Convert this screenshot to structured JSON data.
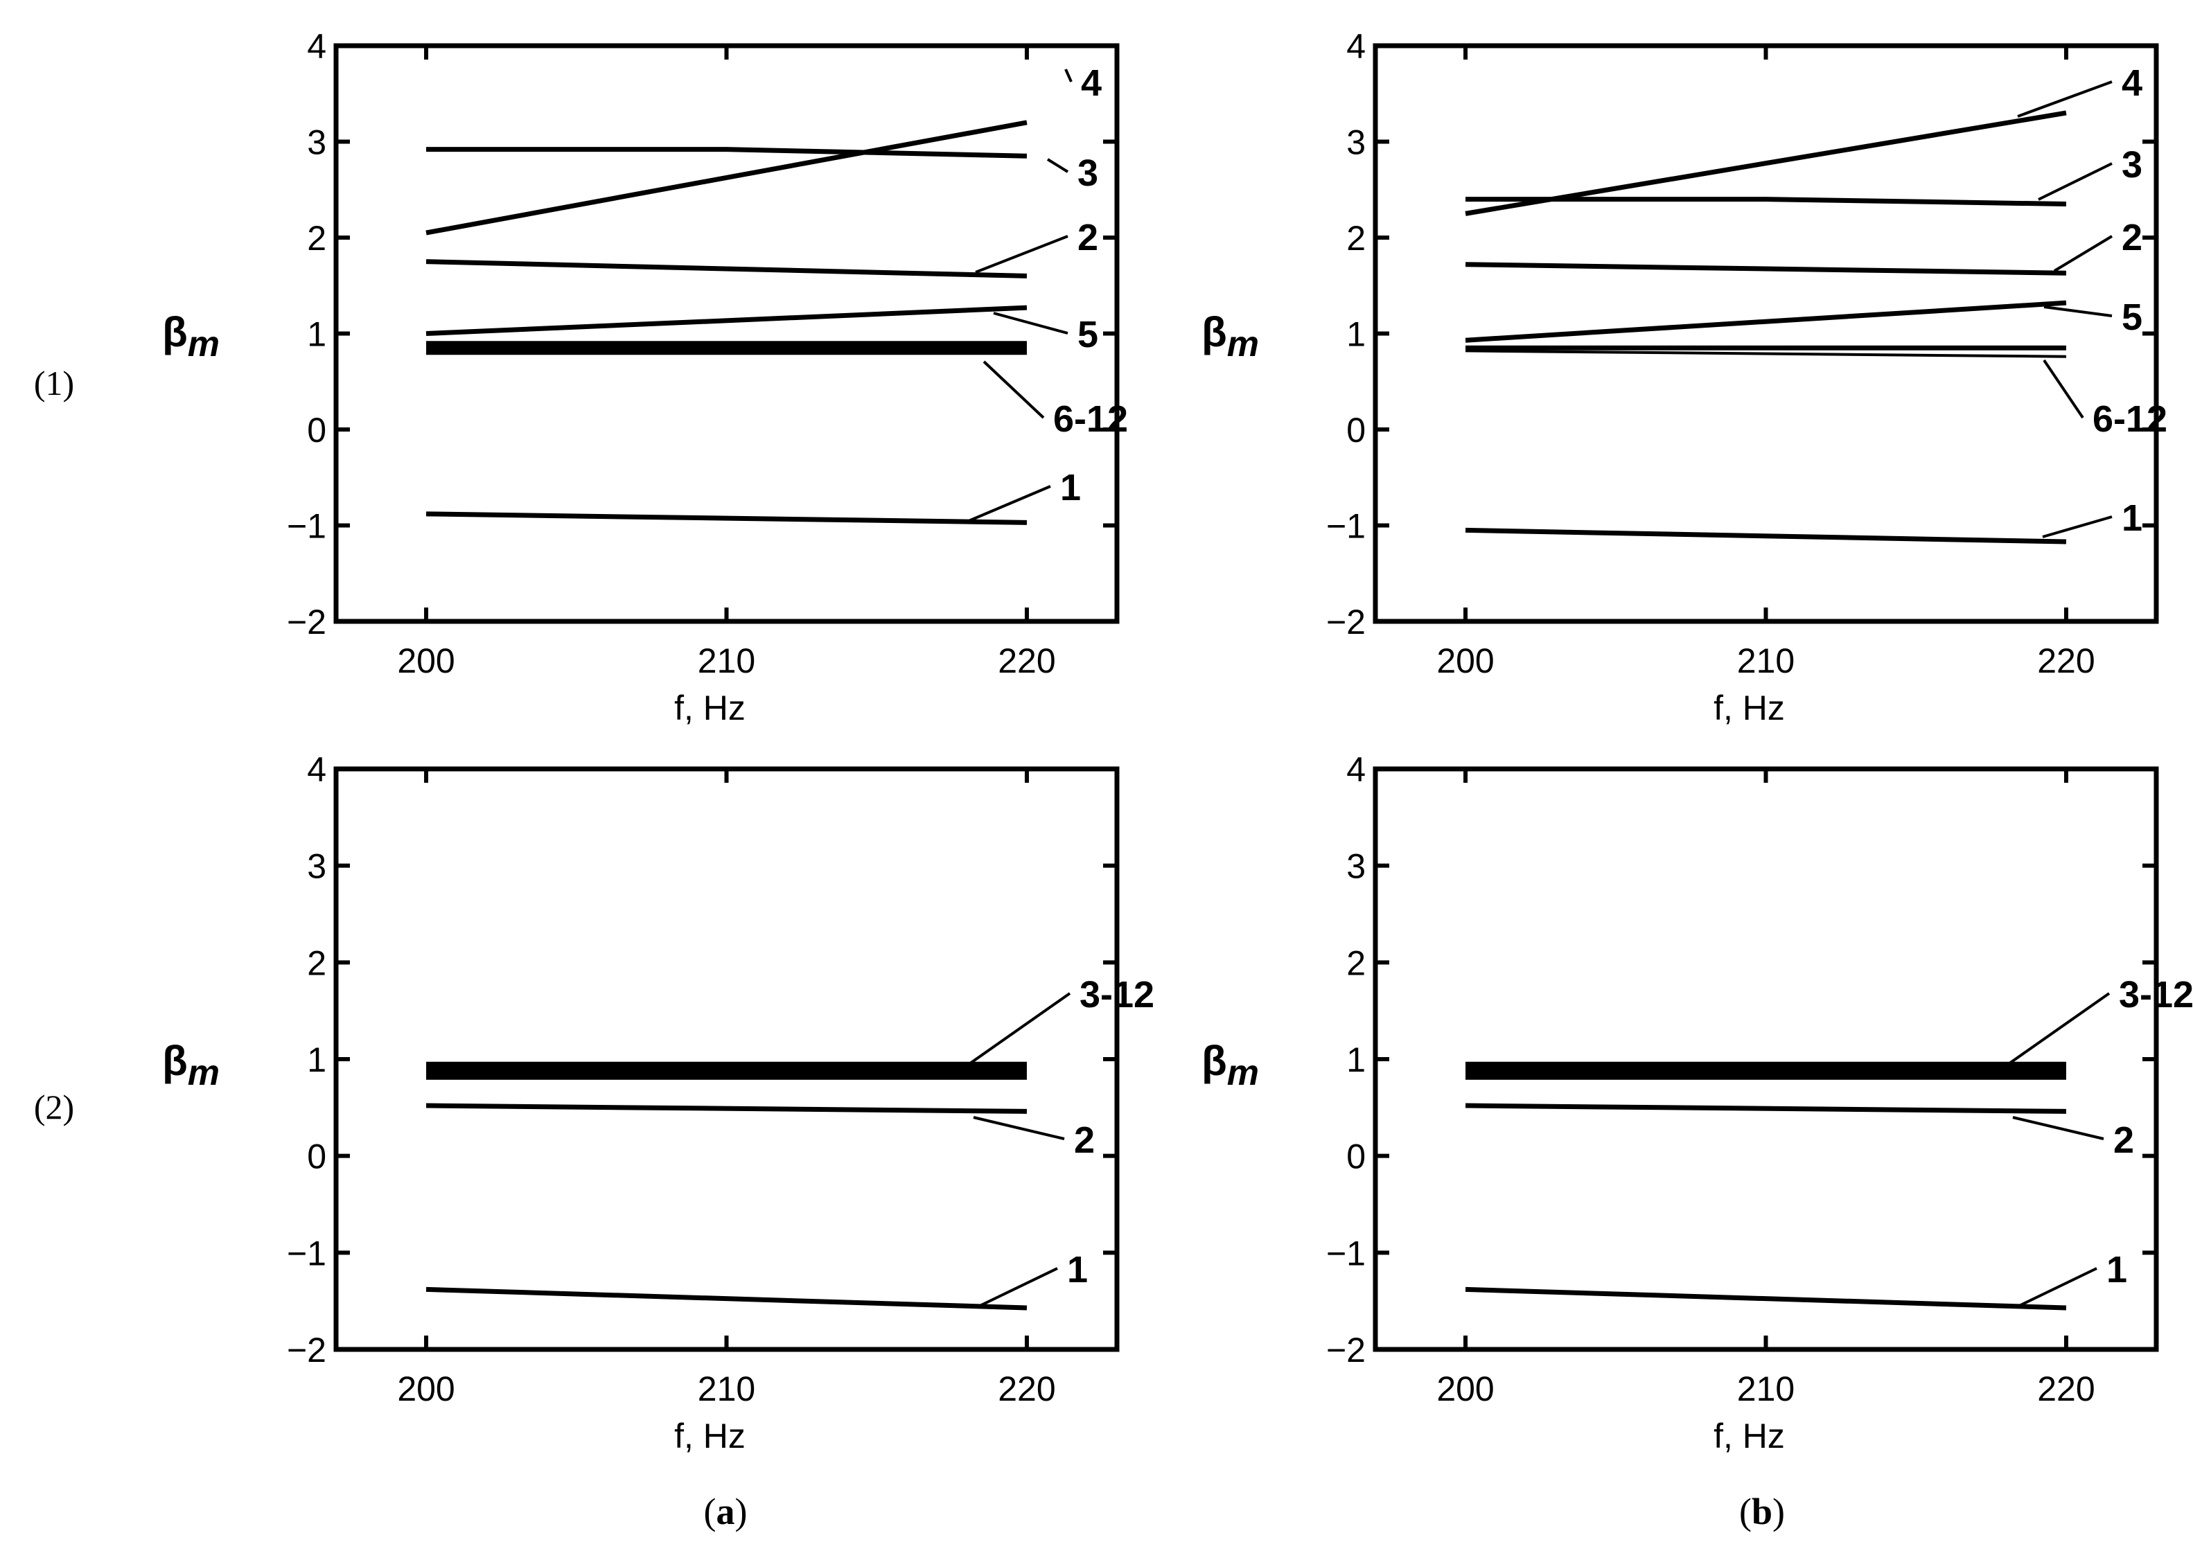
{
  "row_labels": [
    "(1)",
    "(2)"
  ],
  "col_labels": [
    {
      "open": "(",
      "letter": "a",
      "close": ")"
    },
    {
      "open": "(",
      "letter": "b",
      "close": ")"
    }
  ],
  "chart_data": [
    {
      "type": "line",
      "panel": "(1)(a)",
      "xlabel": "f, Hz",
      "ylabel": {
        "base": "β",
        "sub": "m"
      },
      "xlim": [
        197,
        223
      ],
      "ylim": [
        -2,
        4
      ],
      "xticks": [
        200,
        210,
        220
      ],
      "yticks": [
        -2,
        -1,
        0,
        1,
        2,
        3,
        4
      ],
      "grid": false,
      "series": [
        {
          "name": "4",
          "x": [
            200,
            220
          ],
          "y": [
            2.05,
            3.2
          ],
          "weight": "medium"
        },
        {
          "name": "3",
          "x": [
            200,
            210,
            220
          ],
          "y": [
            2.92,
            2.92,
            2.85
          ],
          "weight": "medium"
        },
        {
          "name": "2",
          "x": [
            200,
            220
          ],
          "y": [
            1.75,
            1.6
          ],
          "weight": "medium"
        },
        {
          "name": "5",
          "x": [
            200,
            220
          ],
          "y": [
            1.0,
            1.27
          ],
          "weight": "medium"
        },
        {
          "name": "6-12",
          "x": [
            200,
            220
          ],
          "y": [
            0.85,
            0.85
          ],
          "weight": "band"
        },
        {
          "name": "1",
          "x": [
            200,
            220
          ],
          "y": [
            -0.88,
            -0.97
          ],
          "weight": "medium"
        }
      ]
    },
    {
      "type": "line",
      "panel": "(1)(b)",
      "xlabel": "f, Hz",
      "ylabel": {
        "base": "β",
        "sub": "m"
      },
      "xlim": [
        197,
        223
      ],
      "ylim": [
        -2,
        4
      ],
      "xticks": [
        200,
        210,
        220
      ],
      "yticks": [
        -2,
        -1,
        0,
        1,
        2,
        3,
        4
      ],
      "grid": false,
      "series": [
        {
          "name": "4",
          "x": [
            200,
            220
          ],
          "y": [
            2.25,
            3.3
          ],
          "weight": "medium"
        },
        {
          "name": "3",
          "x": [
            200,
            210,
            220
          ],
          "y": [
            2.4,
            2.4,
            2.35
          ],
          "weight": "medium"
        },
        {
          "name": "2",
          "x": [
            200,
            220
          ],
          "y": [
            1.72,
            1.63
          ],
          "weight": "medium"
        },
        {
          "name": "5",
          "x": [
            200,
            220
          ],
          "y": [
            0.93,
            1.32
          ],
          "weight": "medium"
        },
        {
          "name": "6-12",
          "x": [
            200,
            220
          ],
          "y": [
            0.85,
            0.85
          ],
          "weight": "medium"
        },
        {
          "name": "6-12",
          "x": [
            200,
            220
          ],
          "y": [
            0.82,
            0.76
          ],
          "weight": "thin"
        },
        {
          "name": "1",
          "x": [
            200,
            220
          ],
          "y": [
            -1.05,
            -1.17
          ],
          "weight": "medium"
        }
      ]
    },
    {
      "type": "line",
      "panel": "(2)(a)",
      "xlabel": "f, Hz",
      "ylabel": {
        "base": "β",
        "sub": "m"
      },
      "xlim": [
        197,
        223
      ],
      "ylim": [
        -2,
        4
      ],
      "xticks": [
        200,
        210,
        220
      ],
      "yticks": [
        -2,
        -1,
        0,
        1,
        2,
        3,
        4
      ],
      "grid": false,
      "series": [
        {
          "name": "3-12",
          "x": [
            200,
            220
          ],
          "y": [
            0.88,
            0.88
          ],
          "weight": "thick"
        },
        {
          "name": "2",
          "x": [
            200,
            220
          ],
          "y": [
            0.52,
            0.46
          ],
          "weight": "medium"
        },
        {
          "name": "1",
          "x": [
            200,
            220
          ],
          "y": [
            -1.38,
            -1.57
          ],
          "weight": "medium"
        }
      ]
    },
    {
      "type": "line",
      "panel": "(2)(b)",
      "xlabel": "f, Hz",
      "ylabel": {
        "base": "β",
        "sub": "m"
      },
      "xlim": [
        197,
        223
      ],
      "ylim": [
        -2,
        4
      ],
      "xticks": [
        200,
        210,
        220
      ],
      "yticks": [
        -2,
        -1,
        0,
        1,
        2,
        3,
        4
      ],
      "grid": false,
      "series": [
        {
          "name": "3-12",
          "x": [
            200,
            220
          ],
          "y": [
            0.88,
            0.88
          ],
          "weight": "thick"
        },
        {
          "name": "2",
          "x": [
            200,
            220
          ],
          "y": [
            0.52,
            0.46
          ],
          "weight": "medium"
        },
        {
          "name": "1",
          "x": [
            200,
            220
          ],
          "y": [
            -1.38,
            -1.57
          ],
          "weight": "medium"
        }
      ]
    }
  ]
}
